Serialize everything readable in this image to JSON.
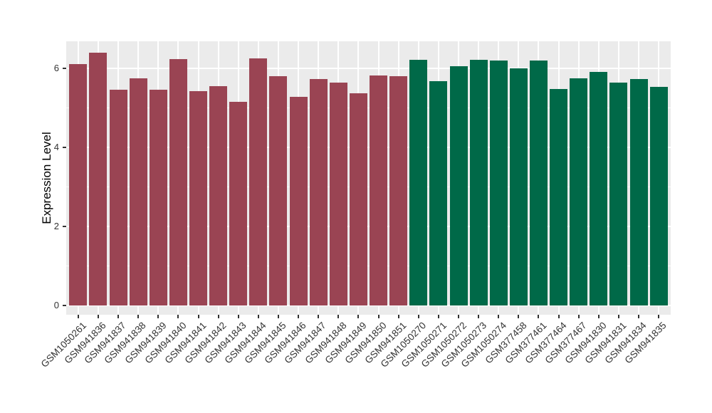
{
  "chart_data": {
    "type": "bar",
    "title": "",
    "xlabel": "",
    "ylabel": "Expression Level",
    "y_ticks": [
      0,
      2,
      4,
      6
    ],
    "y_minor_ticks": [
      1,
      3,
      5
    ],
    "ylim": [
      -0.23,
      6.69
    ],
    "grid": "on",
    "legend": "none",
    "categories": [
      "GSM1050261",
      "GSM941836",
      "GSM941837",
      "GSM941838",
      "GSM941839",
      "GSM941840",
      "GSM941841",
      "GSM941842",
      "GSM941843",
      "GSM941844",
      "GSM941845",
      "GSM941846",
      "GSM941847",
      "GSM941848",
      "GSM941849",
      "GSM941850",
      "GSM941851",
      "GSM1050270",
      "GSM1050271",
      "GSM1050272",
      "GSM1050273",
      "GSM1050274",
      "GSM377458",
      "GSM377461",
      "GSM377464",
      "GSM377467",
      "GSM941830",
      "GSM941831",
      "GSM941834",
      "GSM941835"
    ],
    "values": [
      6.12,
      6.4,
      5.47,
      5.76,
      5.47,
      6.24,
      5.43,
      5.55,
      5.15,
      6.26,
      5.8,
      5.28,
      5.74,
      5.65,
      5.38,
      5.82,
      5.8,
      6.23,
      5.68,
      6.06,
      6.23,
      6.21,
      6.0,
      6.2,
      5.48,
      5.76,
      5.92,
      5.65,
      5.73,
      5.54
    ],
    "bar_groups": [
      "maroon",
      "maroon",
      "maroon",
      "maroon",
      "maroon",
      "maroon",
      "maroon",
      "maroon",
      "maroon",
      "maroon",
      "maroon",
      "maroon",
      "maroon",
      "maroon",
      "maroon",
      "maroon",
      "maroon",
      "green",
      "green",
      "green",
      "green",
      "green",
      "green",
      "green",
      "green",
      "green",
      "green",
      "green",
      "green",
      "green"
    ],
    "colors": {
      "maroon": "#9A4453",
      "green": "#006948",
      "panel_background": "#EBEBEB",
      "gridline": "#FFFFFF",
      "axis_text": "#333333",
      "axis_title": "#000000",
      "tick_mark": "#333333"
    }
  }
}
